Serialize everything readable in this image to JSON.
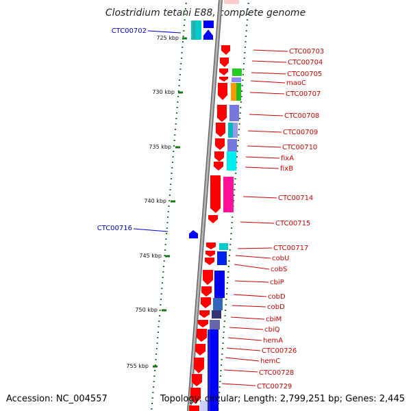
{
  "title": "Clostridium tetani E88, complete genome",
  "footer": {
    "accession": "Accession: NC_004557",
    "topology": "Topology: circular; Length: 2,799,251 bp; Genes: 2,445"
  },
  "colors": {
    "forward_gene": "#ff0000",
    "reverse_gene": "#0000ff",
    "label_red": "#dd0000",
    "label_blue": "#0000cc",
    "tick_green": "#117711",
    "backbone": "#888888"
  },
  "ticks": [
    "725 kbp",
    "730 kbp",
    "735 kbp",
    "740 kbp",
    "745 kbp",
    "750 kbp",
    "755 kbp"
  ],
  "left_labels": [
    "CTC00702",
    "CTC00716"
  ],
  "right_labels": [
    "CTC00703",
    "CTC00704",
    "CTC00705",
    "maoC",
    "CTC00707",
    "CTC00708",
    "CTC00709",
    "CTC00710",
    "fixA",
    "fixB",
    "CTC00714",
    "CTC00715",
    "CTC00717",
    "cobU",
    "cobS",
    "cbiP",
    "cobD",
    "cobD",
    "cbiM",
    "cbiQ",
    "hemA",
    "CTC00726",
    "hemC",
    "CTC00728",
    "CTC00729"
  ]
}
